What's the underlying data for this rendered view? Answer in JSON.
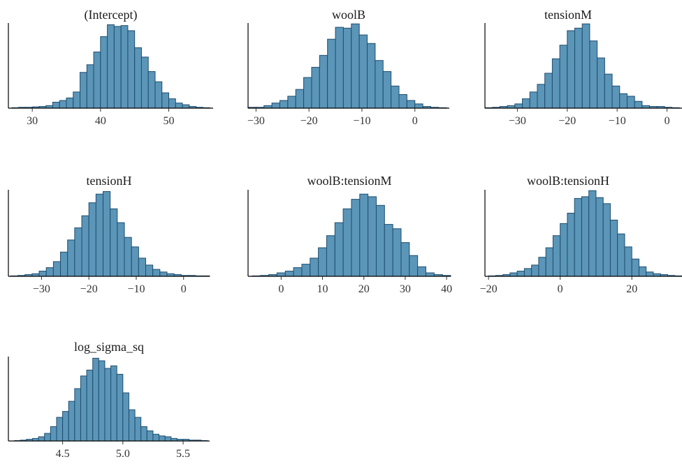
{
  "colors": {
    "bar_fill": "#5b95b8",
    "bar_stroke": "#1f4e6e",
    "axis": "#000000"
  },
  "chart_data": [
    {
      "type": "bar",
      "title": "(Intercept)",
      "xlim": [
        26.5,
        56.5
      ],
      "bin_width": 1,
      "ylim": [
        0,
        1
      ],
      "x": [
        27.5,
        28.5,
        29.5,
        30.5,
        31.5,
        32.5,
        33.5,
        34.5,
        35.5,
        36.5,
        37.5,
        38.5,
        39.5,
        40.5,
        41.5,
        42.5,
        43.5,
        44.5,
        45.5,
        46.5,
        47.5,
        48.5,
        49.5,
        50.5,
        51.5,
        52.5,
        53.5,
        54.5,
        55.5
      ],
      "values": [
        0.005,
        0.01,
        0.01,
        0.015,
        0.02,
        0.03,
        0.07,
        0.09,
        0.12,
        0.19,
        0.42,
        0.51,
        0.66,
        0.84,
        0.98,
        0.96,
        0.97,
        0.91,
        0.71,
        0.6,
        0.43,
        0.31,
        0.18,
        0.11,
        0.06,
        0.04,
        0.02,
        0.01,
        0.005
      ],
      "x_ticks": [
        30,
        40,
        50
      ],
      "x_tick_labels": [
        "30",
        "40",
        "50"
      ]
    },
    {
      "type": "bar",
      "title": "woolB",
      "xlim": [
        -31.5,
        6.5
      ],
      "bin_width": 1.5,
      "ylim": [
        0,
        1
      ],
      "x": [
        -30.75,
        -29.25,
        -27.75,
        -26.25,
        -24.75,
        -23.25,
        -21.75,
        -20.25,
        -18.75,
        -17.25,
        -15.75,
        -14.25,
        -12.75,
        -11.25,
        -9.75,
        -8.25,
        -6.75,
        -5.25,
        -3.75,
        -2.25,
        -0.75,
        0.75,
        2.25,
        3.75,
        5.25
      ],
      "values": [
        0.01,
        0.01,
        0.03,
        0.06,
        0.09,
        0.14,
        0.22,
        0.36,
        0.48,
        0.62,
        0.81,
        0.95,
        0.94,
        0.99,
        0.86,
        0.76,
        0.56,
        0.43,
        0.26,
        0.16,
        0.09,
        0.05,
        0.02,
        0.01,
        0.005
      ],
      "x_ticks": [
        -30,
        -20,
        -10,
        0
      ],
      "x_tick_labels": [
        "−30",
        "−20",
        "−10",
        "0"
      ]
    },
    {
      "type": "bar",
      "title": "tensionM",
      "xlim": [
        -36.5,
        3
      ],
      "bin_width": 1.5,
      "ylim": [
        0,
        1
      ],
      "x": [
        -35.75,
        -34.25,
        -32.75,
        -31.25,
        -29.75,
        -28.25,
        -26.75,
        -25.25,
        -23.75,
        -22.25,
        -20.75,
        -19.25,
        -17.75,
        -16.25,
        -14.75,
        -13.25,
        -11.75,
        -10.25,
        -8.75,
        -7.25,
        -5.75,
        -4.25,
        -2.75,
        -1.25,
        0.25,
        1.75
      ],
      "values": [
        0.005,
        0.01,
        0.02,
        0.03,
        0.05,
        0.11,
        0.19,
        0.28,
        0.41,
        0.58,
        0.74,
        0.91,
        0.94,
        0.99,
        0.79,
        0.59,
        0.4,
        0.26,
        0.17,
        0.14,
        0.08,
        0.03,
        0.02,
        0.02,
        0.01,
        0.005
      ],
      "x_ticks": [
        -30,
        -20,
        -10,
        0
      ],
      "x_tick_labels": [
        "−30",
        "−20",
        "−10",
        "0"
      ]
    },
    {
      "type": "bar",
      "title": "tensionH",
      "xlim": [
        -37,
        5.5
      ],
      "bin_width": 1.5,
      "ylim": [
        0,
        1
      ],
      "x": [
        -35.75,
        -34.25,
        -32.75,
        -31.25,
        -29.75,
        -28.25,
        -26.75,
        -25.25,
        -23.75,
        -22.25,
        -20.75,
        -19.25,
        -17.75,
        -16.25,
        -14.75,
        -13.25,
        -11.75,
        -10.25,
        -8.75,
        -7.25,
        -5.75,
        -4.25,
        -2.75,
        -1.25,
        0.25,
        1.75,
        3.25,
        4.75
      ],
      "values": [
        0.005,
        0.01,
        0.02,
        0.03,
        0.06,
        0.1,
        0.17,
        0.28,
        0.42,
        0.56,
        0.7,
        0.85,
        0.95,
        0.98,
        0.78,
        0.62,
        0.45,
        0.34,
        0.21,
        0.13,
        0.08,
        0.05,
        0.03,
        0.02,
        0.01,
        0.01,
        0.005,
        0.005
      ],
      "x_ticks": [
        -30,
        -20,
        -10,
        0
      ],
      "x_tick_labels": [
        "−30",
        "−20",
        "−10",
        "0"
      ]
    },
    {
      "type": "bar",
      "title": "woolB:tensionM",
      "xlim": [
        -8,
        41
      ],
      "bin_width": 2,
      "ylim": [
        0,
        1
      ],
      "x": [
        -6,
        -4,
        -2,
        0,
        2,
        4,
        6,
        8,
        10,
        12,
        14,
        16,
        18,
        20,
        22,
        24,
        26,
        28,
        30,
        32,
        34,
        36,
        38,
        40
      ],
      "values": [
        0.005,
        0.01,
        0.02,
        0.04,
        0.06,
        0.1,
        0.14,
        0.21,
        0.33,
        0.47,
        0.62,
        0.78,
        0.89,
        0.95,
        0.92,
        0.82,
        0.6,
        0.55,
        0.39,
        0.24,
        0.11,
        0.04,
        0.02,
        0.01
      ],
      "x_ticks": [
        0,
        10,
        20,
        30,
        40
      ],
      "x_tick_labels": [
        "0",
        "10",
        "20",
        "30",
        "40"
      ]
    },
    {
      "type": "bar",
      "title": "woolB:tensionH",
      "xlim": [
        -21,
        34
      ],
      "bin_width": 2,
      "ylim": [
        0,
        1
      ],
      "x": [
        -19,
        -17,
        -15,
        -13,
        -11,
        -9,
        -7,
        -5,
        -3,
        -1,
        1,
        3,
        5,
        7,
        9,
        11,
        13,
        15,
        17,
        19,
        21,
        23,
        25,
        27,
        29,
        31,
        33
      ],
      "values": [
        0.005,
        0.01,
        0.02,
        0.04,
        0.06,
        0.09,
        0.13,
        0.22,
        0.33,
        0.47,
        0.61,
        0.73,
        0.9,
        0.92,
        0.99,
        0.91,
        0.84,
        0.65,
        0.49,
        0.34,
        0.2,
        0.11,
        0.05,
        0.03,
        0.02,
        0.01,
        0.005
      ],
      "x_ticks": [
        -20,
        0,
        20
      ],
      "x_tick_labels": [
        "−20",
        "0",
        "20"
      ]
    },
    {
      "type": "bar",
      "title": "log_sigma_sq",
      "xlim": [
        4.05,
        5.72
      ],
      "bin_width": 0.05,
      "ylim": [
        0,
        1
      ],
      "x": [
        4.125,
        4.175,
        4.225,
        4.275,
        4.325,
        4.375,
        4.425,
        4.475,
        4.525,
        4.575,
        4.625,
        4.675,
        4.725,
        4.775,
        4.825,
        4.875,
        4.925,
        4.975,
        5.025,
        5.075,
        5.125,
        5.175,
        5.225,
        5.275,
        5.325,
        5.375,
        5.425,
        5.475,
        5.525,
        5.575,
        5.625,
        5.675
      ],
      "values": [
        0.005,
        0.01,
        0.02,
        0.03,
        0.05,
        0.09,
        0.17,
        0.28,
        0.35,
        0.47,
        0.62,
        0.77,
        0.84,
        0.98,
        0.95,
        0.86,
        0.89,
        0.79,
        0.57,
        0.37,
        0.28,
        0.17,
        0.12,
        0.08,
        0.06,
        0.05,
        0.03,
        0.02,
        0.02,
        0.01,
        0.01,
        0.005
      ],
      "x_ticks": [
        4.5,
        5.0,
        5.5
      ],
      "x_tick_labels": [
        "4.5",
        "5.0",
        "5.5"
      ]
    }
  ]
}
